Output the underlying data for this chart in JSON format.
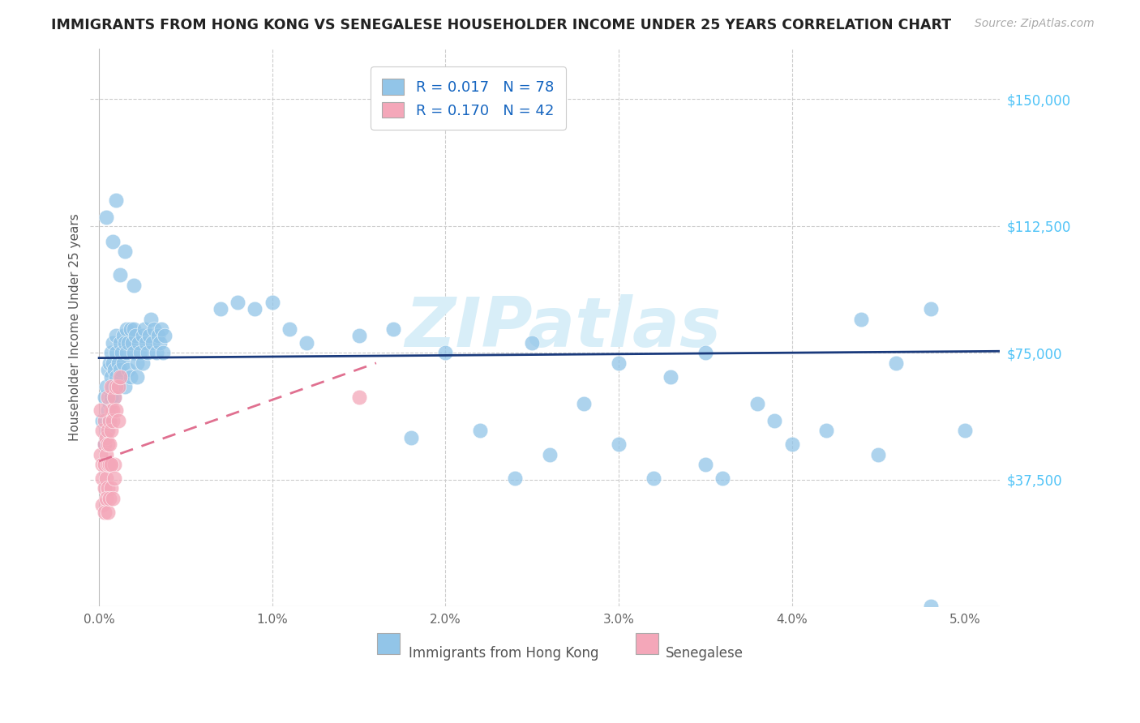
{
  "title": "IMMIGRANTS FROM HONG KONG VS SENEGALESE HOUSEHOLDER INCOME UNDER 25 YEARS CORRELATION CHART",
  "source": "Source: ZipAtlas.com",
  "ylabel": "Householder Income Under 25 years",
  "ytick_labels": [
    "$37,500",
    "$75,000",
    "$112,500",
    "$150,000"
  ],
  "ytick_values": [
    37500,
    75000,
    112500,
    150000
  ],
  "ymin": 0,
  "ymax": 165000,
  "xmin": -0.0005,
  "xmax": 0.052,
  "hk_color": "#92C5E8",
  "sen_color": "#F4A7B9",
  "hk_line_color": "#1A3A7C",
  "sen_line_color": "#E07090",
  "watermark": "ZIPatlas",
  "watermark_color": "#D8EEF8",
  "hk_scatter": [
    [
      0.0002,
      55000
    ],
    [
      0.0003,
      48000
    ],
    [
      0.0003,
      62000
    ],
    [
      0.0004,
      52000
    ],
    [
      0.0004,
      65000
    ],
    [
      0.0005,
      58000
    ],
    [
      0.0005,
      70000
    ],
    [
      0.0006,
      60000
    ],
    [
      0.0006,
      72000
    ],
    [
      0.0006,
      55000
    ],
    [
      0.0007,
      68000
    ],
    [
      0.0007,
      75000
    ],
    [
      0.0007,
      62000
    ],
    [
      0.0008,
      72000
    ],
    [
      0.0008,
      65000
    ],
    [
      0.0008,
      78000
    ],
    [
      0.0009,
      70000
    ],
    [
      0.0009,
      62000
    ],
    [
      0.001,
      75000
    ],
    [
      0.001,
      68000
    ],
    [
      0.001,
      80000
    ],
    [
      0.0011,
      72000
    ],
    [
      0.0011,
      65000
    ],
    [
      0.0012,
      78000
    ],
    [
      0.0012,
      70000
    ],
    [
      0.0013,
      75000
    ],
    [
      0.0013,
      68000
    ],
    [
      0.0014,
      80000
    ],
    [
      0.0014,
      72000
    ],
    [
      0.0015,
      78000
    ],
    [
      0.0015,
      65000
    ],
    [
      0.0016,
      82000
    ],
    [
      0.0016,
      75000
    ],
    [
      0.0017,
      78000
    ],
    [
      0.0017,
      70000
    ],
    [
      0.0018,
      82000
    ],
    [
      0.0018,
      68000
    ],
    [
      0.0019,
      78000
    ],
    [
      0.002,
      75000
    ],
    [
      0.002,
      82000
    ],
    [
      0.0021,
      80000
    ],
    [
      0.0022,
      72000
    ],
    [
      0.0022,
      68000
    ],
    [
      0.0023,
      78000
    ],
    [
      0.0024,
      75000
    ],
    [
      0.0025,
      80000
    ],
    [
      0.0025,
      72000
    ],
    [
      0.0026,
      82000
    ],
    [
      0.0027,
      78000
    ],
    [
      0.0028,
      75000
    ],
    [
      0.0029,
      80000
    ],
    [
      0.003,
      85000
    ],
    [
      0.0031,
      78000
    ],
    [
      0.0032,
      82000
    ],
    [
      0.0033,
      75000
    ],
    [
      0.0034,
      80000
    ],
    [
      0.0035,
      78000
    ],
    [
      0.0036,
      82000
    ],
    [
      0.0037,
      75000
    ],
    [
      0.0038,
      80000
    ],
    [
      0.0004,
      115000
    ],
    [
      0.001,
      120000
    ],
    [
      0.0008,
      108000
    ],
    [
      0.0015,
      105000
    ],
    [
      0.0012,
      98000
    ],
    [
      0.002,
      95000
    ],
    [
      0.007,
      88000
    ],
    [
      0.008,
      90000
    ],
    [
      0.009,
      88000
    ],
    [
      0.01,
      90000
    ],
    [
      0.011,
      82000
    ],
    [
      0.012,
      78000
    ],
    [
      0.015,
      80000
    ],
    [
      0.017,
      82000
    ],
    [
      0.02,
      75000
    ],
    [
      0.025,
      78000
    ],
    [
      0.03,
      72000
    ],
    [
      0.035,
      75000
    ],
    [
      0.018,
      50000
    ],
    [
      0.022,
      52000
    ],
    [
      0.026,
      45000
    ],
    [
      0.03,
      48000
    ],
    [
      0.035,
      42000
    ],
    [
      0.04,
      48000
    ],
    [
      0.045,
      45000
    ],
    [
      0.05,
      52000
    ],
    [
      0.048,
      0
    ],
    [
      0.042,
      52000
    ],
    [
      0.046,
      72000
    ],
    [
      0.044,
      85000
    ],
    [
      0.039,
      55000
    ],
    [
      0.036,
      38000
    ],
    [
      0.032,
      38000
    ],
    [
      0.028,
      60000
    ],
    [
      0.024,
      38000
    ],
    [
      0.048,
      88000
    ],
    [
      0.038,
      60000
    ],
    [
      0.033,
      68000
    ]
  ],
  "sen_scatter": [
    [
      0.0001,
      45000
    ],
    [
      0.0002,
      42000
    ],
    [
      0.0002,
      52000
    ],
    [
      0.0002,
      38000
    ],
    [
      0.0003,
      48000
    ],
    [
      0.0003,
      55000
    ],
    [
      0.0003,
      42000
    ],
    [
      0.0003,
      35000
    ],
    [
      0.0004,
      50000
    ],
    [
      0.0004,
      45000
    ],
    [
      0.0004,
      38000
    ],
    [
      0.0005,
      52000
    ],
    [
      0.0005,
      48000
    ],
    [
      0.0005,
      42000
    ],
    [
      0.0005,
      35000
    ],
    [
      0.0005,
      62000
    ],
    [
      0.0006,
      55000
    ],
    [
      0.0006,
      48000
    ],
    [
      0.0006,
      42000
    ],
    [
      0.0007,
      58000
    ],
    [
      0.0007,
      52000
    ],
    [
      0.0007,
      35000
    ],
    [
      0.0007,
      65000
    ],
    [
      0.0008,
      58000
    ],
    [
      0.0008,
      55000
    ],
    [
      0.0009,
      62000
    ],
    [
      0.0009,
      42000
    ],
    [
      0.001,
      65000
    ],
    [
      0.001,
      58000
    ],
    [
      0.0011,
      65000
    ],
    [
      0.0011,
      55000
    ],
    [
      0.0012,
      68000
    ],
    [
      0.0001,
      58000
    ],
    [
      0.0002,
      30000
    ],
    [
      0.0003,
      28000
    ],
    [
      0.0004,
      32000
    ],
    [
      0.0005,
      28000
    ],
    [
      0.0006,
      32000
    ],
    [
      0.0007,
      42000
    ],
    [
      0.0008,
      32000
    ],
    [
      0.0009,
      38000
    ],
    [
      0.015,
      62000
    ]
  ],
  "hk_line_xrange": [
    0.0,
    0.052
  ],
  "hk_line_yrange": [
    73500,
    75500
  ],
  "sen_line_xrange": [
    0.0,
    0.016
  ],
  "sen_line_ystart": 43000,
  "sen_line_yend": 72000
}
